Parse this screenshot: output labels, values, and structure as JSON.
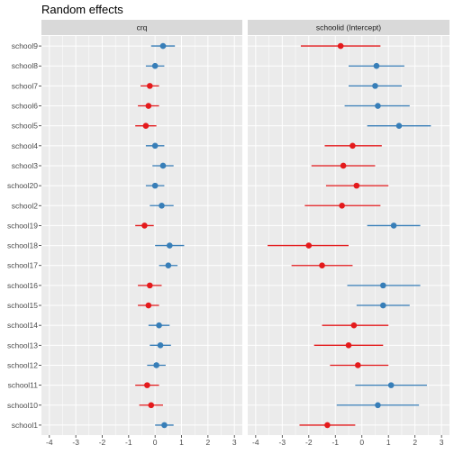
{
  "chart_data": {
    "type": "forest",
    "title": "Random effects",
    "categories": [
      "school9",
      "school8",
      "school7",
      "school6",
      "school5",
      "school4",
      "school3",
      "school20",
      "school2",
      "school19",
      "school18",
      "school17",
      "school16",
      "school15",
      "school14",
      "school13",
      "school12",
      "school11",
      "school10",
      "school1"
    ],
    "xlim": [
      -4.3,
      3.3
    ],
    "xticks": [
      -4,
      -3,
      -2,
      -1,
      0,
      1,
      2,
      3
    ],
    "xtick_labels": [
      "-4",
      "-3",
      "-2",
      "-1",
      "0",
      "1",
      "2",
      "3"
    ],
    "colors": {
      "negative": "#e41a1c",
      "positive": "#377eb8",
      "panel_bg": "#ebebeb",
      "strip_bg": "#d9d9d9",
      "grid": "#ffffff"
    },
    "panels": [
      {
        "name": "crq",
        "estimates": [
          0.3,
          0.0,
          -0.2,
          -0.25,
          -0.35,
          0.0,
          0.3,
          0.0,
          0.25,
          -0.4,
          0.55,
          0.5,
          -0.2,
          -0.25,
          0.15,
          0.2,
          0.05,
          -0.3,
          -0.15,
          0.35
        ],
        "lower": [
          -0.15,
          -0.35,
          -0.55,
          -0.65,
          -0.75,
          -0.35,
          -0.1,
          -0.35,
          -0.2,
          -0.75,
          0.0,
          0.15,
          -0.65,
          -0.65,
          -0.25,
          -0.2,
          -0.3,
          -0.75,
          -0.6,
          0.0
        ],
        "upper": [
          0.75,
          0.35,
          0.15,
          0.15,
          0.05,
          0.35,
          0.7,
          0.35,
          0.7,
          -0.05,
          1.1,
          0.85,
          0.25,
          0.15,
          0.55,
          0.6,
          0.4,
          0.15,
          0.3,
          0.7
        ]
      },
      {
        "name": "schoolid (Intercept)",
        "estimates": [
          -0.8,
          0.55,
          0.5,
          0.6,
          1.4,
          -0.35,
          -0.7,
          -0.2,
          -0.75,
          1.2,
          -2.0,
          -1.5,
          0.8,
          0.8,
          -0.3,
          -0.5,
          -0.15,
          1.1,
          0.6,
          -1.3
        ],
        "lower": [
          -2.3,
          -0.5,
          -0.5,
          -0.65,
          0.2,
          -1.4,
          -1.9,
          -1.35,
          -2.15,
          0.2,
          -3.55,
          -2.65,
          -0.55,
          -0.2,
          -1.5,
          -1.8,
          -1.2,
          -0.25,
          -0.95,
          -2.35
        ],
        "upper": [
          0.7,
          1.6,
          1.5,
          1.8,
          2.6,
          0.75,
          0.5,
          1.0,
          0.7,
          2.2,
          -0.5,
          -0.35,
          2.2,
          1.8,
          1.0,
          0.8,
          1.0,
          2.45,
          2.15,
          -0.25
        ]
      }
    ]
  }
}
